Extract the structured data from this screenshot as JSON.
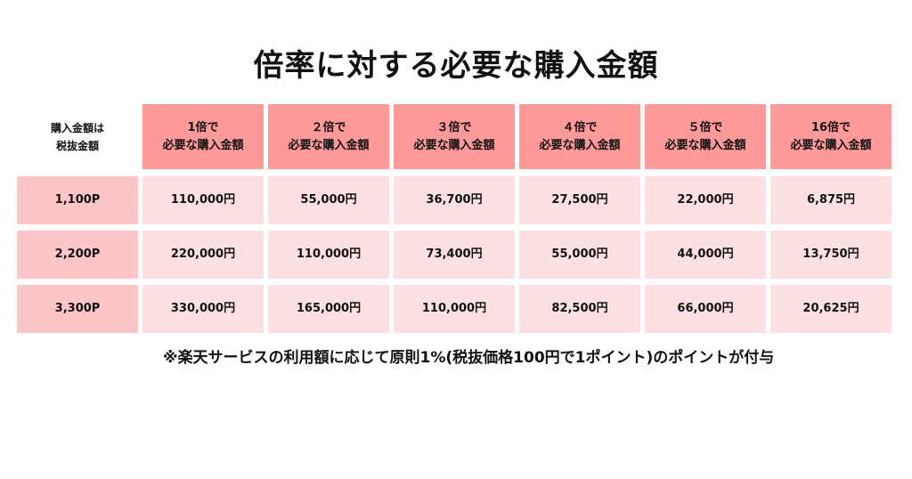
{
  "title": "倍率に対する必要な購入金額",
  "corner": {
    "line1": "購入金額は",
    "line2": "税抜金額"
  },
  "columns": [
    {
      "line1": "1倍で",
      "line2": "必要な購入金額"
    },
    {
      "line1": "２倍で",
      "line2": "必要な購入金額"
    },
    {
      "line1": "３倍で",
      "line2": "必要な購入金額"
    },
    {
      "line1": "４倍で",
      "line2": "必要な購入金額"
    },
    {
      "line1": "５倍で",
      "line2": "必要な購入金額"
    },
    {
      "line1": "16倍で",
      "line2": "必要な購入金額"
    }
  ],
  "rows": [
    {
      "label": "1,100P",
      "values": [
        "110,000円",
        "55,000円",
        "36,700円",
        "27,500円",
        "22,000円",
        "6,875円"
      ]
    },
    {
      "label": "2,200P",
      "values": [
        "220,000円",
        "110,000円",
        "73,400円",
        "55,000円",
        "44,000円",
        "13,750円"
      ]
    },
    {
      "label": "3,300P",
      "values": [
        "330,000円",
        "165,000円",
        "110,000円",
        "82,500円",
        "66,000円",
        "20,625円"
      ]
    }
  ],
  "note": "※楽天サービスの利用額に応じて原則1%(税抜価格100円で1ポイント)のポイントが付与",
  "colors": {
    "header_bg": "#fe9a9a",
    "label_bg": "#fdc5c8",
    "value_bg": "#fde0e2"
  }
}
